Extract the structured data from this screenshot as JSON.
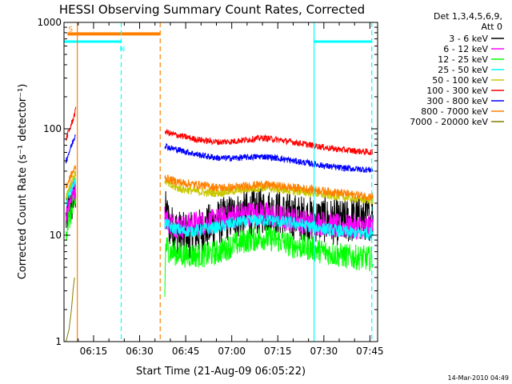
{
  "chart_data": {
    "type": "line",
    "title": "HESSI Observing Summary Count Rates, Corrected",
    "xlabel": "Start Time (21-Aug-09 06:05:22)",
    "ylabel": "Corrected Count Rate (s⁻¹ detector⁻¹)",
    "xaxis_units": "minutes after 06:00 UT",
    "xlim": [
      5.37,
      107.5
    ],
    "ylim": [
      1,
      1000
    ],
    "yscale": "log",
    "x_ticks": [
      15,
      30,
      45,
      60,
      75,
      90,
      105
    ],
    "x_tick_labels": [
      "06:15",
      "06:30",
      "06:45",
      "07:00",
      "07:15",
      "07:30",
      "07:45"
    ],
    "y_ticks": [
      1,
      10,
      100,
      1000
    ],
    "y_tick_labels": [
      "1",
      "10",
      "100",
      "1000"
    ],
    "legend_header": [
      "Det 1,3,4,5,6,9,",
      "Att 0"
    ],
    "legend_position": "right",
    "date_stamp": "14-Mar-2010 04:49",
    "flags": [
      {
        "label": "S",
        "color": "#ff8000",
        "x_start": 6.5,
        "x_end": 36.7,
        "level": 780
      },
      {
        "label": "N",
        "color": "#00ffff",
        "x_start": 5.4,
        "x_end": 24.0,
        "level": 660
      },
      {
        "label": "",
        "color": "#00ffff",
        "x_start": 86.8,
        "x_end": 105.6,
        "level": 660
      }
    ],
    "vlines": [
      {
        "x": 9.7,
        "color": "#ff8000",
        "style": "solid"
      },
      {
        "x": 24.0,
        "color": "#00ffff",
        "style": "dashed"
      },
      {
        "x": 36.7,
        "color": "#ff8000",
        "style": "dashed"
      },
      {
        "x": 86.8,
        "color": "#00ffff",
        "style": "solid"
      },
      {
        "x": 105.6,
        "color": "#00ffff",
        "style": "dashed"
      }
    ],
    "series": [
      {
        "name": "3 - 6 keV",
        "color": "#000000",
        "noise": 0.22,
        "segments": [
          {
            "x": [
              6.0,
              7.0,
              8.0,
              9.2
            ],
            "y": [
              14,
              17,
              21,
              26
            ]
          },
          {
            "x": [
              38.2,
              40,
              44,
              47,
              50,
              55,
              60,
              65,
              70,
              75,
              80,
              86,
              90,
              95,
              100,
              106
            ],
            "y": [
              17,
              12,
              10,
              10,
              11,
              13,
              15,
              16,
              17,
              16,
              15,
              14,
              14,
              13,
              14,
              15
            ]
          }
        ]
      },
      {
        "name": "6 - 12 keV",
        "color": "#ff00ff",
        "noise": 0.12,
        "segments": [
          {
            "x": [
              6.0,
              7.0,
              8.0,
              9.2
            ],
            "y": [
              16,
              20,
              24,
              29
            ]
          },
          {
            "x": [
              38.2,
              40,
              44,
              48,
              52,
              56,
              60,
              65,
              70,
              75,
              80,
              86,
              90,
              95,
              100,
              106
            ],
            "y": [
              15,
              13,
              12,
              13,
              13,
              14,
              15,
              16,
              16,
              15,
              14,
              13,
              13,
              12,
              12,
              12
            ]
          }
        ]
      },
      {
        "name": "12 - 25 keV",
        "color": "#00ff00",
        "noise": 0.12,
        "segments": [
          {
            "x": [
              6.0,
              7.0,
              8.0,
              9.2
            ],
            "y": [
              11,
              14,
              17,
              21
            ]
          },
          {
            "x": [
              38.2,
              38.5,
              40,
              44,
              48,
              52,
              56,
              60,
              65,
              70,
              75,
              80,
              86,
              90,
              95,
              100,
              106
            ],
            "y": [
              3,
              8,
              7,
              6.5,
              6.5,
              6.5,
              7,
              8,
              9,
              9.5,
              9,
              8,
              7.5,
              7,
              6.5,
              6.2,
              6
            ]
          }
        ]
      },
      {
        "name": "25 - 50 keV",
        "color": "#00ffff",
        "noise": 0.06,
        "segments": [
          {
            "x": [
              6.0,
              7.0,
              8.0,
              9.2
            ],
            "y": [
              20,
              25,
              29,
              34
            ]
          },
          {
            "x": [
              38.2,
              40,
              44,
              48,
              52,
              56,
              60,
              65,
              70,
              75,
              80,
              86,
              90,
              95,
              100,
              106
            ],
            "y": [
              13,
              12,
              11,
              11,
              11.5,
              12,
              13,
              13.5,
              14,
              13.5,
              13,
              12,
              11.5,
              11,
              10.5,
              10.5
            ]
          }
        ]
      },
      {
        "name": "50 - 100 keV",
        "color": "#c8c800",
        "noise": 0.04,
        "segments": [
          {
            "x": [
              6.0,
              7.0,
              8.0,
              9.2
            ],
            "y": [
              23,
              28,
              33,
              38
            ]
          },
          {
            "x": [
              38.2,
              40,
              44,
              48,
              52,
              56,
              60,
              65,
              70,
              75,
              80,
              86,
              90,
              95,
              100,
              106
            ],
            "y": [
              33,
              29,
              27,
              26,
              25,
              25,
              26,
              27,
              28,
              27,
              26,
              25,
              24,
              23,
              22,
              21
            ]
          }
        ]
      },
      {
        "name": "100 - 300 keV",
        "color": "#ff0000",
        "noise": 0.03,
        "segments": [
          {
            "x": [
              6.0,
              7.0,
              8.0,
              9.2
            ],
            "y": [
              80,
              95,
              115,
              150
            ]
          },
          {
            "x": [
              38.2,
              40,
              44,
              48,
              52,
              56,
              60,
              65,
              70,
              75,
              80,
              86,
              90,
              95,
              100,
              106
            ],
            "y": [
              95,
              90,
              85,
              80,
              77,
              75,
              76,
              79,
              82,
              79,
              75,
              70,
              67,
              64,
              62,
              60
            ]
          }
        ]
      },
      {
        "name": "300 - 800 keV",
        "color": "#0000ff",
        "noise": 0.03,
        "segments": [
          {
            "x": [
              6.0,
              7.0,
              8.0,
              9.2
            ],
            "y": [
              50,
              60,
              72,
              90
            ]
          },
          {
            "x": [
              38.2,
              40,
              44,
              48,
              52,
              56,
              60,
              65,
              70,
              75,
              80,
              86,
              90,
              95,
              100,
              106
            ],
            "y": [
              70,
              66,
              62,
              58,
              55,
              53,
              53,
              54,
              55,
              53,
              50,
              47,
              45,
              43,
              42,
              41
            ]
          }
        ]
      },
      {
        "name": "800 - 7000 keV",
        "color": "#ff8000",
        "noise": 0.04,
        "segments": [
          {
            "x": [
              6.0,
              7.0,
              8.0,
              9.2
            ],
            "y": [
              28,
              33,
              38,
              44
            ]
          },
          {
            "x": [
              38.2,
              40,
              44,
              48,
              52,
              56,
              60,
              65,
              70,
              75,
              80,
              86,
              90,
              95,
              100,
              106
            ],
            "y": [
              35,
              33,
              31,
              30,
              29,
              28,
              28,
              29,
              30,
              29,
              28,
              27,
              26,
              25,
              24,
              23
            ]
          }
        ]
      },
      {
        "name": "7000 - 20000 keV",
        "color": "#808000",
        "noise": 0.0,
        "segments": [
          {
            "x": [
              6.0,
              7.0,
              7.8,
              8.3,
              8.8
            ],
            "y": [
              1.0,
              1.3,
              2.0,
              3.0,
              4.0
            ]
          }
        ]
      }
    ]
  }
}
